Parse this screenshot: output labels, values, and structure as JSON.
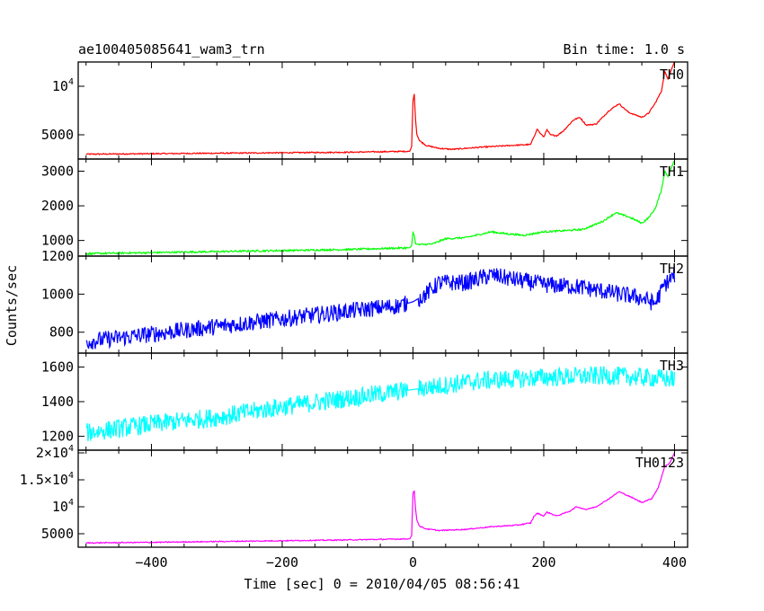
{
  "chart_data": {
    "type": "line",
    "header_left": "ae100405085641_wam3_trn",
    "header_right": "Bin time: 1.0 s",
    "xlabel": "Time [sec] 0 = 2010/04/05 08:56:41",
    "ylabel": "Counts/sec",
    "xlim": [
      -512,
      420
    ],
    "x_ticks": [
      {
        "v": -400,
        "t": "−400"
      },
      {
        "v": -200,
        "t": "−200"
      },
      {
        "v": 0,
        "t": "0"
      },
      {
        "v": 200,
        "t": "200"
      },
      {
        "v": 400,
        "t": "400"
      }
    ],
    "panels": [
      {
        "name": "TH0",
        "color": "#ff0000",
        "ylim": [
          2500,
          12500
        ],
        "y_ticks": [
          {
            "v": 5000,
            "t": "5000"
          },
          {
            "v": 10000,
            "m": "10",
            "e": "4"
          }
        ],
        "noise": 60,
        "points": [
          [
            -500,
            3000
          ],
          [
            -400,
            3050
          ],
          [
            -300,
            3100
          ],
          [
            -200,
            3150
          ],
          [
            -100,
            3200
          ],
          [
            -5,
            3300
          ],
          [
            -2,
            3800
          ],
          [
            0,
            8500
          ],
          [
            2,
            9200
          ],
          [
            4,
            6500
          ],
          [
            6,
            5000
          ],
          [
            10,
            4400
          ],
          [
            20,
            3900
          ],
          [
            40,
            3600
          ],
          [
            60,
            3500
          ],
          [
            100,
            3700
          ],
          [
            150,
            3900
          ],
          [
            180,
            4000
          ],
          [
            185,
            4800
          ],
          [
            190,
            5600
          ],
          [
            195,
            5100
          ],
          [
            200,
            4800
          ],
          [
            205,
            5500
          ],
          [
            210,
            5000
          ],
          [
            220,
            4900
          ],
          [
            230,
            5400
          ],
          [
            245,
            6500
          ],
          [
            255,
            6800
          ],
          [
            265,
            6000
          ],
          [
            280,
            6100
          ],
          [
            300,
            7500
          ],
          [
            315,
            8200
          ],
          [
            330,
            7300
          ],
          [
            350,
            6800
          ],
          [
            360,
            7200
          ],
          [
            370,
            8200
          ],
          [
            380,
            9500
          ],
          [
            385,
            11500
          ],
          [
            390,
            10800
          ],
          [
            395,
            11700
          ],
          [
            400,
            12500
          ]
        ]
      },
      {
        "name": "TH1",
        "color": "#00ff00",
        "ylim": [
          550,
          3350
        ],
        "y_ticks": [
          {
            "v": 1000,
            "t": "1000"
          },
          {
            "v": 2000,
            "t": "2000"
          },
          {
            "v": 3000,
            "t": "3000"
          }
        ],
        "noise": 25,
        "points": [
          [
            -500,
            620
          ],
          [
            -400,
            650
          ],
          [
            -300,
            680
          ],
          [
            -200,
            710
          ],
          [
            -100,
            740
          ],
          [
            -5,
            790
          ],
          [
            -2,
            850
          ],
          [
            0,
            1230
          ],
          [
            2,
            1150
          ],
          [
            4,
            900
          ],
          [
            10,
            880
          ],
          [
            30,
            900
          ],
          [
            50,
            1050
          ],
          [
            80,
            1080
          ],
          [
            120,
            1250
          ],
          [
            140,
            1200
          ],
          [
            170,
            1150
          ],
          [
            200,
            1250
          ],
          [
            230,
            1280
          ],
          [
            260,
            1320
          ],
          [
            290,
            1550
          ],
          [
            310,
            1800
          ],
          [
            330,
            1680
          ],
          [
            350,
            1500
          ],
          [
            360,
            1650
          ],
          [
            370,
            1900
          ],
          [
            380,
            2450
          ],
          [
            385,
            3000
          ],
          [
            390,
            2850
          ],
          [
            395,
            3100
          ],
          [
            400,
            3300
          ]
        ]
      },
      {
        "name": "TH2",
        "color": "#0000ff",
        "ylim": [
          690,
          1200
        ],
        "y_ticks": [
          {
            "v": 800,
            "t": "800"
          },
          {
            "v": 1000,
            "t": "1000"
          },
          {
            "v": 1200,
            "t": "1200"
          }
        ],
        "noise": 45,
        "points": [
          [
            -500,
            750
          ],
          [
            -400,
            790
          ],
          [
            -300,
            830
          ],
          [
            -200,
            870
          ],
          [
            -100,
            910
          ],
          [
            -20,
            940
          ],
          [
            0,
            960
          ],
          [
            20,
            1000
          ],
          [
            40,
            1060
          ],
          [
            80,
            1060
          ],
          [
            120,
            1100
          ],
          [
            150,
            1080
          ],
          [
            200,
            1050
          ],
          [
            250,
            1040
          ],
          [
            300,
            1010
          ],
          [
            350,
            980
          ],
          [
            370,
            950
          ],
          [
            385,
            1050
          ],
          [
            400,
            1100
          ]
        ]
      },
      {
        "name": "TH3",
        "color": "#00ffff",
        "ylim": [
          1120,
          1680
        ],
        "y_ticks": [
          {
            "v": 1200,
            "t": "1200"
          },
          {
            "v": 1400,
            "t": "1400"
          },
          {
            "v": 1600,
            "t": "1600"
          }
        ],
        "noise": 55,
        "points": [
          [
            -500,
            1220
          ],
          [
            -400,
            1270
          ],
          [
            -300,
            1310
          ],
          [
            -200,
            1370
          ],
          [
            -100,
            1420
          ],
          [
            0,
            1470
          ],
          [
            100,
            1520
          ],
          [
            200,
            1540
          ],
          [
            300,
            1550
          ],
          [
            400,
            1530
          ]
        ]
      },
      {
        "name": "TH0123",
        "color": "#ff00ff",
        "ylim": [
          2500,
          20500
        ],
        "y_ticks": [
          {
            "v": 5000,
            "t": "5000"
          },
          {
            "v": 10000,
            "m": "10",
            "e": "4"
          },
          {
            "v": 15000,
            "m": "1.5×10",
            "e": "4"
          },
          {
            "v": 20000,
            "m": "2×10",
            "e": "4"
          }
        ],
        "noise": 90,
        "points": [
          [
            -500,
            3300
          ],
          [
            -400,
            3400
          ],
          [
            -300,
            3550
          ],
          [
            -200,
            3700
          ],
          [
            -100,
            3850
          ],
          [
            -5,
            4050
          ],
          [
            -2,
            4700
          ],
          [
            0,
            12500
          ],
          [
            2,
            13000
          ],
          [
            4,
            9500
          ],
          [
            6,
            7500
          ],
          [
            10,
            6400
          ],
          [
            20,
            5900
          ],
          [
            40,
            5600
          ],
          [
            80,
            5800
          ],
          [
            120,
            6300
          ],
          [
            160,
            6600
          ],
          [
            180,
            7000
          ],
          [
            185,
            8200
          ],
          [
            190,
            8800
          ],
          [
            200,
            8300
          ],
          [
            205,
            9000
          ],
          [
            220,
            8300
          ],
          [
            240,
            9200
          ],
          [
            250,
            10000
          ],
          [
            265,
            9500
          ],
          [
            280,
            10000
          ],
          [
            300,
            11500
          ],
          [
            315,
            12800
          ],
          [
            330,
            12000
          ],
          [
            350,
            10800
          ],
          [
            365,
            11500
          ],
          [
            375,
            13500
          ],
          [
            385,
            17500
          ],
          [
            392,
            18000
          ],
          [
            400,
            20000
          ]
        ]
      }
    ]
  }
}
